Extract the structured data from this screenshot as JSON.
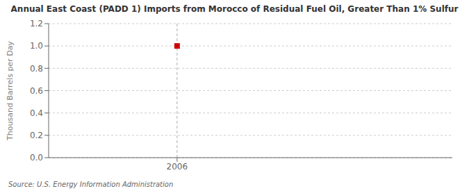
{
  "chart_data": {
    "type": "scatter",
    "title": "Annual East Coast (PADD 1) Imports from Morocco of Residual Fuel Oil, Greater Than 1% Sulfur",
    "y_label": "Thousand Barrels per Day",
    "source": "Source: U.S. Energy Information Administration",
    "x": [
      2006
    ],
    "values": [
      1.0
    ],
    "color": "#cc0000",
    "marker": "square",
    "xlim": [
      2005.3,
      2007.5
    ],
    "ylim": [
      0.0,
      1.2
    ],
    "xticks": [
      2006
    ],
    "yticks": [
      {
        "value": 0.0,
        "label": "0.0"
      },
      0.2,
      0.4,
      0.6,
      0.8,
      {
        "value": 1.0,
        "label": "1.0"
      },
      1.2
    ],
    "grid": true,
    "vline_x": 2006
  }
}
